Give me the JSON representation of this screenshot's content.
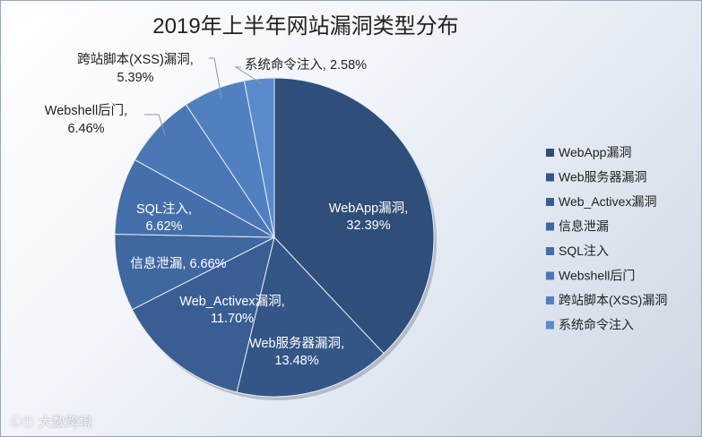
{
  "chart_data": {
    "type": "pie",
    "title": "2019年上半年网站漏洞类型分布",
    "slices": [
      {
        "name": "WebApp漏洞",
        "value": 32.39,
        "label": "32.39%",
        "inside": true
      },
      {
        "name": "Web服务器漏洞",
        "value": 13.48,
        "label": "13.48%",
        "inside": true
      },
      {
        "name": "Web_Activex漏洞",
        "value": 11.7,
        "label": "11.70%",
        "inside": true
      },
      {
        "name": "信息泄漏",
        "value": 6.66,
        "label": "6.66%",
        "inside": true
      },
      {
        "name": "SQL注入",
        "value": 6.62,
        "label": "6.62%",
        "inside": true
      },
      {
        "name": "Webshell后门",
        "value": 6.46,
        "label": "6.46%",
        "inside": false
      },
      {
        "name": "跨站脚本(XSS)漏洞",
        "value": 5.39,
        "label": "5.39%",
        "inside": false
      },
      {
        "name": "系统命令注入",
        "value": 2.58,
        "label": "2.58%",
        "inside": false
      }
    ],
    "legend_position": "right",
    "colors": [
      "#2f4e79",
      "#345687",
      "#3a5e94",
      "#3f67a0",
      "#446fab",
      "#4a78b6",
      "#5080c0",
      "#5a8acb"
    ]
  },
  "watermark": {
    "mark": "ⓁⓉ",
    "text": "大数跨境"
  }
}
